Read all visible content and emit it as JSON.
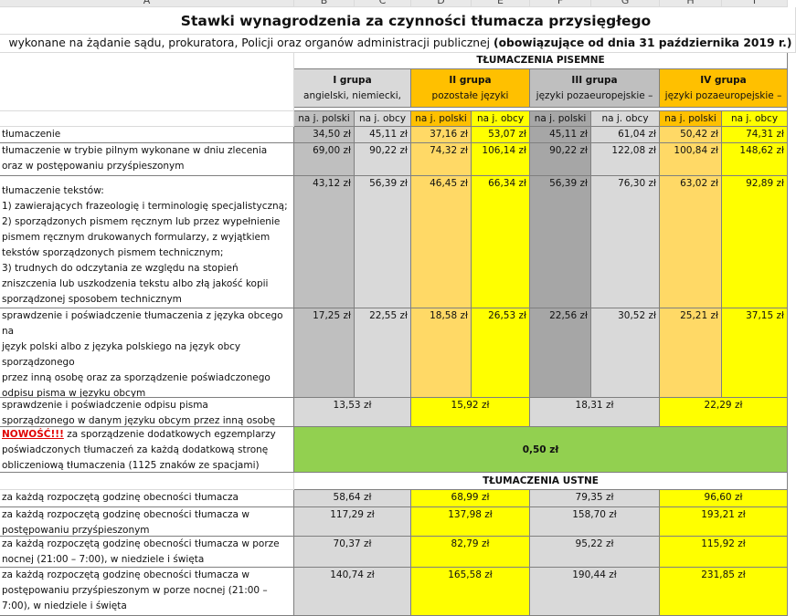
{
  "column_headers": [
    "A",
    "B",
    "C",
    "D",
    "E",
    "F",
    "G",
    "H",
    "I"
  ],
  "title": "Stawki wynagrodzenia za czynności tłumacza przysięgłego",
  "subtitle": {
    "text": "wykonane na żądanie sądu, prokuratora, Policji oraz organów administracji publicznej ",
    "emphasis": "(obowiązujące od dnia 31 października 2019 r.)"
  },
  "written": {
    "heading": "TŁUMACZENIA PISEMNE",
    "groups": [
      {
        "name": "I grupa",
        "languages": "angielski, niemiecki,"
      },
      {
        "name": "II grupa",
        "languages": "pozostałe języki"
      },
      {
        "name": "III grupa",
        "languages": "języki pozaeuropejskie –"
      },
      {
        "name": "IV grupa",
        "languages": "języki pozaeuropejskie –"
      }
    ],
    "subheaders": [
      "na j. polski",
      "na j. obcy",
      "na j. polski",
      "na j. obcy",
      "na j. polski",
      "na j. obcy",
      "na j. polski",
      "na j. obcy"
    ],
    "rows": [
      {
        "label": [
          "tłumaczenie"
        ],
        "values": [
          "34,50 zł",
          "45,11 zł",
          "37,16 zł",
          "53,07 zł",
          "45,11 zł",
          "61,04 zł",
          "50,42 zł",
          "74,31 zł"
        ]
      },
      {
        "label": [
          "tłumaczenie w trybie pilnym wykonane w dniu zlecenia",
          "oraz w postępowaniu przyśpieszonym"
        ],
        "values": [
          "69,00 zł",
          "90,22 zł",
          "74,32 zł",
          "106,14 zł",
          "90,22 zł",
          "122,08 zł",
          "100,84 zł",
          "148,62 zł"
        ]
      },
      {
        "label": [
          "tłumaczenie tekstów:",
          "1) zawierających frazeologię i terminologię specjalistyczną;",
          "2) sporządzonych pismem ręcznym lub przez wypełnienie",
          "pismem ręcznym drukowanych formularzy, z wyjątkiem",
          "tekstów sporządzonych pismem technicznym;",
          "3) trudnych do odczytania ze względu na stopień",
          "zniszczenia lub uszkodzenia tekstu albo złą jakość kopii",
          "sporządzonej sposobem technicznym"
        ],
        "values": [
          "43,12 zł",
          "56,39 zł",
          "46,45 zł",
          "66,34 zł",
          "56,39 zł",
          "76,30 zł",
          "63,02 zł",
          "92,89 zł"
        ]
      },
      {
        "label": [
          "sprawdzenie i poświadczenie tłumaczenia z języka obcego",
          "na",
          "język polski albo z języka polskiego na język obcy",
          "sporządzonego",
          "przez inną osobę oraz za sporządzenie poświadczonego",
          "odpisu pisma w języku obcym"
        ],
        "values": [
          "17,25 zł",
          "22,55 zł",
          "18,58 zł",
          "26,53 zł",
          "22,56 zł",
          "30,52 zł",
          "25,21 zł",
          "37,15 zł"
        ]
      },
      {
        "label": [
          "sprawdzenie i poświadczenie odpisu pisma",
          "sporządzonego w danym języku obcym przez inną osobę"
        ],
        "group_values": [
          "13,53 zł",
          "15,92 zł",
          "18,31 zł",
          "22,29 zł"
        ]
      },
      {
        "highlight": "NOWOŚĆ!!!",
        "label": [
          " za sporządzenie dodatkowych egzemplarzy",
          "poświadczonych tłumaczeń za każdą dodatkową stronę",
          "obliczeniową tłumaczenia (1125 znaków ze spacjami)"
        ],
        "value": "0,50 zł"
      }
    ]
  },
  "oral": {
    "heading": "TŁUMACZENIA USTNE",
    "rows": [
      {
        "label": [
          "za każdą rozpoczętą godzinę obecności tłumacza"
        ],
        "group_values": [
          "58,64 zł",
          "68,99 zł",
          "79,35 zł",
          "96,60 zł"
        ]
      },
      {
        "label": [
          "za każdą rozpoczętą godzinę obecności tłumacza w",
          "postępowaniu przyśpieszonym"
        ],
        "group_values": [
          "117,29 zł",
          "137,98 zł",
          "158,70 zł",
          "193,21 zł"
        ]
      },
      {
        "label": [
          "za każdą rozpoczętą godzinę obecności tłumacza w porze",
          "nocnej (21:00 – 7:00), w niedziele i święta"
        ],
        "group_values": [
          "70,37 zł",
          "82,79 zł",
          "95,22 zł",
          "115,92 zł"
        ]
      },
      {
        "label": [
          "za każdą rozpoczętą godzinę obecności tłumacza w",
          "postępowaniu przyśpieszonym w porze nocnej (21:00 –",
          "7:00), w niedziele i święta"
        ],
        "group_values": [
          "140,74 zł",
          "165,58 zł",
          "190,44 zł",
          "231,85 zł"
        ]
      }
    ]
  }
}
